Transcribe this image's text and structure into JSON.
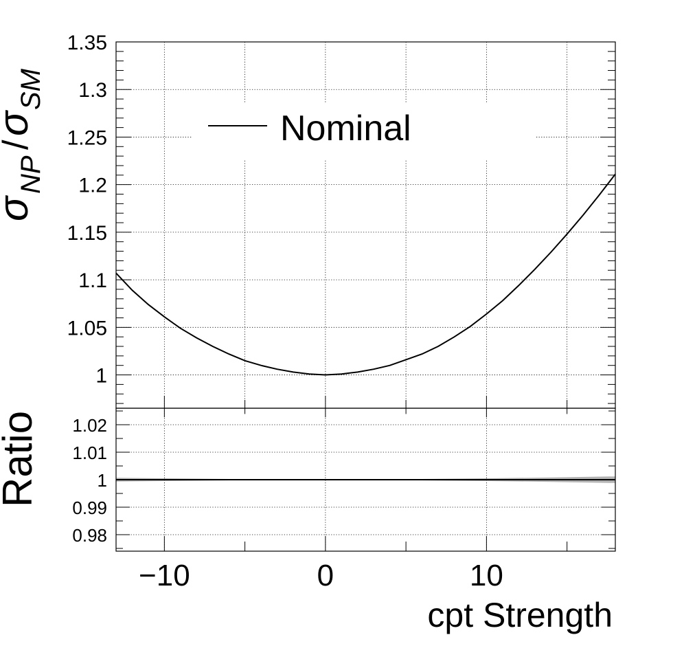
{
  "chart_data": [
    {
      "type": "line",
      "panel": "main",
      "ylabel": {
        "base": "σ",
        "sub1": "NP",
        "slash": "/",
        "base2": "σ",
        "sub2": "SM"
      },
      "xlim": [
        -13,
        18
      ],
      "ylim": [
        0.965,
        1.35
      ],
      "grid": true,
      "legend": {
        "placement": "top-left",
        "entries": [
          {
            "label": "Nominal",
            "color": "#000000"
          }
        ]
      },
      "yticks": [
        1,
        1.05,
        1.1,
        1.15,
        1.2,
        1.25,
        1.3,
        1.35
      ],
      "ytick_labels": [
        "1",
        "1.05",
        "1.1",
        "1.15",
        "1.2",
        "1.25",
        "1.3",
        "1.35"
      ],
      "series": [
        {
          "name": "Nominal",
          "x": [
            -13,
            -12,
            -11,
            -10,
            -9,
            -8,
            -7,
            -6,
            -5,
            -4,
            -3,
            -2,
            -1,
            0,
            1,
            2,
            3,
            4,
            5,
            6,
            7,
            8,
            9,
            10,
            11,
            12,
            13,
            14,
            15,
            16,
            17,
            18
          ],
          "y": [
            1.107,
            1.089,
            1.074,
            1.061,
            1.049,
            1.039,
            1.03,
            1.022,
            1.015,
            1.01,
            1.006,
            1.003,
            1.001,
            1.0,
            1.001,
            1.003,
            1.006,
            1.01,
            1.016,
            1.022,
            1.03,
            1.04,
            1.051,
            1.064,
            1.078,
            1.094,
            1.111,
            1.129,
            1.148,
            1.168,
            1.189,
            1.211
          ]
        }
      ]
    },
    {
      "type": "area",
      "panel": "ratio",
      "ylabel": "Ratio",
      "xlabel": "cpt Strength",
      "xlim": [
        -13,
        18
      ],
      "ylim": [
        0.974,
        1.026
      ],
      "grid": true,
      "yticks": [
        0.98,
        0.99,
        1,
        1.01,
        1.02
      ],
      "ytick_labels": [
        "0.98",
        "0.99",
        "1",
        "1.01",
        "1.02"
      ],
      "xticks": [
        -10,
        0,
        10
      ],
      "xtick_labels": [
        "−10",
        "0",
        "10"
      ],
      "ratio_line": 1.0,
      "band": {
        "x": [
          -13,
          -10,
          -5,
          0,
          5,
          10,
          14,
          18
        ],
        "upper": [
          1.0007,
          1.0005,
          1.0002,
          1.0001,
          1.0002,
          1.0005,
          1.0008,
          1.0012
        ]
      }
    }
  ]
}
